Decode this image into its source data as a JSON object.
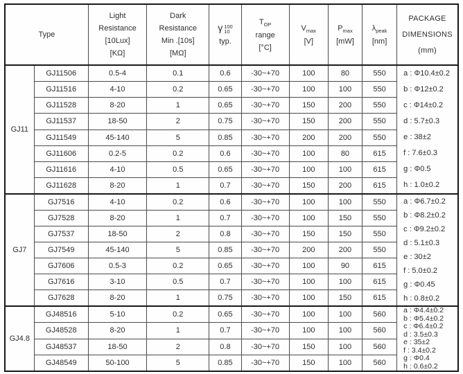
{
  "colors": {
    "background": "#ffffff",
    "border_thick": "#181818",
    "border_thin": "#4a4a4a",
    "text": "#2d2d2d"
  },
  "table": {
    "header": {
      "type": "Type",
      "light": [
        "Light",
        "Resistance",
        "[10Lux]",
        "[KΩ]"
      ],
      "dark": [
        "Dark",
        "Resistance",
        "Min .[10s]",
        "[MΩ]"
      ],
      "gamma": {
        "symbol": "γ",
        "sup": "100",
        "sub": "10",
        "line2": "typ."
      },
      "top": {
        "main": "T",
        "sub": "OP",
        "line2": "range",
        "line3": "[°C]"
      },
      "vmax": {
        "main": "V",
        "sub": "max",
        "line2": "[V]"
      },
      "pmax": {
        "main": "P",
        "sub": "max",
        "line2": "[mW]"
      },
      "lambda": {
        "main": "λ",
        "sub": "peak",
        "line2": "[nm]"
      },
      "package": [
        "PACKAGE",
        "DIMENSIONS",
        "(mm)"
      ]
    },
    "groups": [
      {
        "name": "GJ11",
        "rows": [
          [
            "GJ11506",
            "0.5-4",
            "0.1",
            "0.6",
            "-30~+70",
            "100",
            "80",
            "550"
          ],
          [
            "GJ11516",
            "4-10",
            "0.2",
            "0.65",
            "-30~+70",
            "100",
            "100",
            "550"
          ],
          [
            "GJ11528",
            "8-20",
            "1",
            "0.65",
            "-30~+70",
            "150",
            "200",
            "550"
          ],
          [
            "GJ11537",
            "18-50",
            "2",
            "0.75",
            "-30~+70",
            "150",
            "200",
            "550"
          ],
          [
            "GJ11549",
            "45-140",
            "5",
            "0.85",
            "-30~+70",
            "200",
            "200",
            "550"
          ],
          [
            "GJ11606",
            "0.2-5",
            "0.2",
            "0.6",
            "-30~+70",
            "100",
            "80",
            "615"
          ],
          [
            "GJ11616",
            "4-10",
            "0.5",
            "0.65",
            "-30~+70",
            "100",
            "100",
            "615"
          ],
          [
            "GJ11628",
            "8-20",
            "1",
            "0.7",
            "-30~+70",
            "150",
            "200",
            "615"
          ]
        ],
        "package_dims": [
          "a : Φ10.4±0.2",
          "b : Φ12±0.2",
          "c : Φ14±0.2",
          "d : 5.7±0.3",
          "e : 38±2",
          "f : 7.6±0.3",
          "g : Φ0.5",
          "h : 1.0±0.2"
        ]
      },
      {
        "name": "GJ7",
        "rows": [
          [
            "GJ7516",
            "4-10",
            "0.2",
            "0.6",
            "-30~+70",
            "100",
            "100",
            "550"
          ],
          [
            "GJ7528",
            "8-20",
            "1",
            "0.7",
            "-30~+70",
            "100",
            "150",
            "550"
          ],
          [
            "GJ7537",
            "18-50",
            "2",
            "0.8",
            "-30~+70",
            "150",
            "150",
            "550"
          ],
          [
            "GJ7549",
            "45-140",
            "5",
            "0.85",
            "-30~+70",
            "200",
            "200",
            "550"
          ],
          [
            "GJ7606",
            "0.5-3",
            "0.2",
            "0.65",
            "-30~+70",
            "100",
            "90",
            "615"
          ],
          [
            "GJ7616",
            "3-10",
            "0.5",
            "0.7",
            "-30~+70",
            "100",
            "100",
            "615"
          ],
          [
            "GJ7628",
            "8-20",
            "1",
            "0.75",
            "-30~+70",
            "100",
            "150",
            "615"
          ]
        ],
        "package_dims": [
          "a : Φ6.7±0.2",
          "b : Φ8.2±0.2",
          "c : Φ9.2±0.2",
          "d : 5.1±0.3",
          "e : 30±2",
          "f : 5.0±0.2",
          "g : Φ0.45",
          "h : 0.8±0.2"
        ]
      },
      {
        "name": "GJ4.8",
        "rows": [
          [
            "GJ48516",
            "5-10",
            "0.2",
            "0.65",
            "-30~+70",
            "100",
            "100",
            "560"
          ],
          [
            "GJ48528",
            "8-20",
            "1",
            "0.7",
            "-30~+70",
            "100",
            "100",
            "560"
          ],
          [
            "GJ48537",
            "18-50",
            "2",
            "0.8",
            "-30~+70",
            "150",
            "100",
            "560"
          ],
          [
            "GJ48549",
            "50-100",
            "5",
            "0.85",
            "-30~+70",
            "150",
            "100",
            "560"
          ]
        ],
        "package_dims": [
          "a : Φ4.4±0.2",
          "b : Φ5.4±0.2",
          "c : Φ6.4±0.2",
          "d : 3.5±0.3",
          "e : 35±2",
          "f : 3.4±0.2",
          "g : Φ0.4",
          "h : 0.6±0.2"
        ]
      }
    ]
  }
}
